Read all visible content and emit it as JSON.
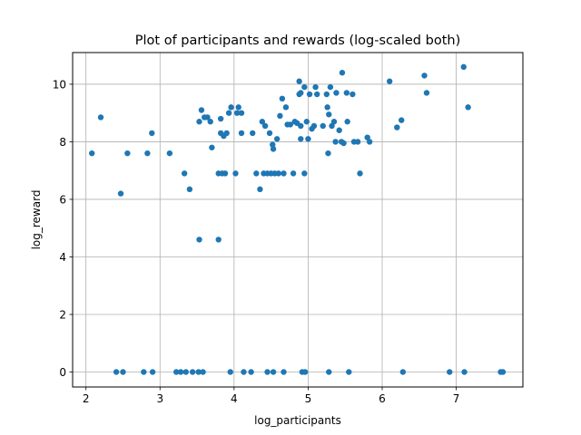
{
  "chart_data": {
    "type": "scatter",
    "title": "Plot of participants and rewards (log-scaled both)",
    "xlabel": "log_participants",
    "ylabel": "log_reward",
    "xlim": [
      1.82,
      7.9
    ],
    "ylim": [
      -0.52,
      11.1
    ],
    "xticks": [
      2,
      3,
      4,
      5,
      6,
      7
    ],
    "yticks": [
      0,
      2,
      4,
      6,
      8,
      10
    ],
    "grid": true,
    "marker_color": "#1f77b4",
    "points": [
      [
        2.08,
        7.6
      ],
      [
        2.2,
        8.85
      ],
      [
        2.47,
        6.2
      ],
      [
        2.56,
        7.6
      ],
      [
        2.83,
        7.6
      ],
      [
        2.89,
        8.3
      ],
      [
        3.13,
        7.6
      ],
      [
        3.33,
        6.9
      ],
      [
        3.4,
        6.35
      ],
      [
        3.53,
        4.6
      ],
      [
        3.53,
        8.7
      ],
      [
        3.56,
        9.1
      ],
      [
        3.6,
        8.85
      ],
      [
        3.64,
        8.85
      ],
      [
        3.68,
        8.7
      ],
      [
        3.7,
        7.8
      ],
      [
        3.79,
        4.6
      ],
      [
        3.79,
        6.9
      ],
      [
        3.82,
        8.8
      ],
      [
        3.82,
        8.3
      ],
      [
        3.84,
        6.9
      ],
      [
        3.86,
        8.2
      ],
      [
        3.88,
        6.9
      ],
      [
        3.9,
        8.3
      ],
      [
        3.93,
        9.0
      ],
      [
        3.96,
        9.2
      ],
      [
        4.02,
        6.9
      ],
      [
        4.04,
        9.0
      ],
      [
        4.06,
        9.2
      ],
      [
        4.1,
        9.0
      ],
      [
        4.1,
        8.3
      ],
      [
        4.25,
        8.3
      ],
      [
        4.3,
        6.9
      ],
      [
        4.35,
        6.35
      ],
      [
        4.38,
        8.7
      ],
      [
        4.4,
        6.9
      ],
      [
        4.42,
        8.55
      ],
      [
        4.45,
        6.9
      ],
      [
        4.48,
        8.3
      ],
      [
        4.5,
        6.9
      ],
      [
        4.52,
        7.9
      ],
      [
        4.53,
        7.75
      ],
      [
        4.55,
        6.9
      ],
      [
        4.58,
        8.1
      ],
      [
        4.6,
        6.9
      ],
      [
        4.62,
        8.9
      ],
      [
        4.65,
        9.5
      ],
      [
        4.67,
        6.9
      ],
      [
        4.7,
        9.2
      ],
      [
        4.72,
        8.6
      ],
      [
        4.76,
        8.6
      ],
      [
        4.8,
        6.9
      ],
      [
        4.82,
        8.7
      ],
      [
        4.85,
        8.65
      ],
      [
        4.88,
        10.1
      ],
      [
        4.88,
        9.65
      ],
      [
        4.9,
        9.7
      ],
      [
        4.9,
        8.1
      ],
      [
        4.9,
        8.55
      ],
      [
        4.95,
        9.9
      ],
      [
        4.95,
        6.9
      ],
      [
        4.98,
        8.7
      ],
      [
        5.0,
        8.1
      ],
      [
        5.02,
        9.65
      ],
      [
        5.05,
        8.45
      ],
      [
        5.08,
        8.55
      ],
      [
        5.1,
        9.9
      ],
      [
        5.12,
        9.65
      ],
      [
        5.2,
        8.55
      ],
      [
        5.25,
        9.65
      ],
      [
        5.26,
        9.2
      ],
      [
        5.27,
        7.6
      ],
      [
        5.28,
        8.95
      ],
      [
        5.3,
        9.9
      ],
      [
        5.32,
        8.55
      ],
      [
        5.35,
        8.7
      ],
      [
        5.37,
        8.0
      ],
      [
        5.38,
        9.7
      ],
      [
        5.42,
        8.4
      ],
      [
        5.45,
        8.0
      ],
      [
        5.46,
        10.4
      ],
      [
        5.48,
        7.95
      ],
      [
        5.52,
        9.7
      ],
      [
        5.53,
        8.7
      ],
      [
        5.6,
        9.65
      ],
      [
        5.62,
        8.0
      ],
      [
        5.67,
        8.0
      ],
      [
        5.7,
        6.9
      ],
      [
        5.8,
        8.15
      ],
      [
        5.83,
        8.0
      ],
      [
        6.1,
        10.1
      ],
      [
        6.2,
        8.5
      ],
      [
        6.26,
        8.75
      ],
      [
        6.57,
        10.3
      ],
      [
        6.6,
        9.7
      ],
      [
        7.1,
        10.6
      ],
      [
        7.16,
        9.2
      ],
      [
        2.41,
        0
      ],
      [
        2.5,
        0
      ],
      [
        2.78,
        0
      ],
      [
        2.9,
        0
      ],
      [
        3.22,
        0
      ],
      [
        3.28,
        0
      ],
      [
        3.35,
        0
      ],
      [
        3.44,
        0
      ],
      [
        3.52,
        0
      ],
      [
        3.58,
        0
      ],
      [
        3.95,
        0
      ],
      [
        4.13,
        0
      ],
      [
        4.23,
        0
      ],
      [
        4.45,
        0
      ],
      [
        4.53,
        0
      ],
      [
        4.67,
        0
      ],
      [
        4.92,
        0
      ],
      [
        4.96,
        0
      ],
      [
        5.28,
        0
      ],
      [
        5.55,
        0
      ],
      [
        6.28,
        0
      ],
      [
        6.91,
        0
      ],
      [
        7.11,
        0
      ],
      [
        7.6,
        0
      ],
      [
        7.63,
        0
      ]
    ]
  }
}
